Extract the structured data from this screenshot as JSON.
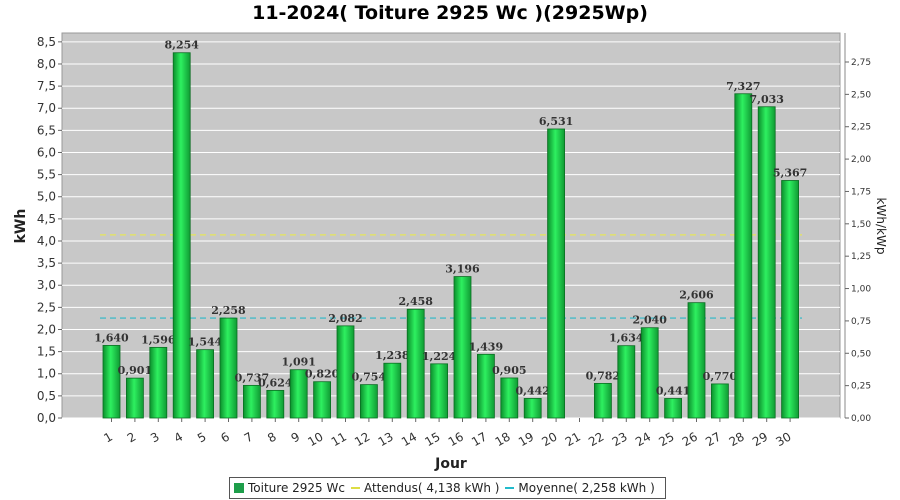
{
  "chart_data": {
    "type": "bar",
    "title": "11-2024( Toiture 2925 Wc )(2925Wp)",
    "xlabel": "Jour",
    "ylabel": "kWh",
    "y2label": "kWh/kWp",
    "ylim": [
      0,
      8.7
    ],
    "y2lim": [
      0,
      2.974
    ],
    "yticks": [
      "0,0",
      "0,5",
      "1,0",
      "1,5",
      "2,0",
      "2,5",
      "3,0",
      "3,5",
      "4,0",
      "4,5",
      "5,0",
      "5,5",
      "6,0",
      "6,5",
      "7,0",
      "7,5",
      "8,0",
      "8,5"
    ],
    "y2ticks": [
      "0,00",
      "0,25",
      "0,50",
      "0,75",
      "1,00",
      "1,25",
      "1,50",
      "1,75",
      "2,00",
      "2,25",
      "2,50",
      "2,75"
    ],
    "categories": [
      "1",
      "2",
      "3",
      "4",
      "5",
      "6",
      "7",
      "8",
      "9",
      "10",
      "11",
      "12",
      "13",
      "14",
      "15",
      "16",
      "17",
      "18",
      "19",
      "20",
      "21",
      "22",
      "23",
      "24",
      "25",
      "26",
      "27",
      "28",
      "29",
      "30"
    ],
    "series": [
      {
        "name": "Toiture 2925 Wc",
        "values": [
          1.64,
          0.901,
          1.596,
          8.254,
          1.544,
          2.258,
          0.737,
          0.624,
          1.091,
          0.82,
          2.082,
          0.754,
          1.238,
          2.458,
          1.224,
          3.196,
          1.439,
          0.905,
          0.442,
          6.531,
          0,
          0.782,
          1.634,
          2.04,
          0.441,
          2.606,
          0.77,
          7.327,
          7.033,
          5.367
        ],
        "labels": [
          "1,640",
          "0,901",
          "1,596",
          "8,254",
          "1,544",
          "2,258",
          "0,737",
          "0,624",
          "1,091",
          "0,820",
          "2,082",
          "0,754",
          "1,238",
          "2,458",
          "1,224",
          "3,196",
          "1,439",
          "0,905",
          "0,442",
          "6,531",
          "",
          "0,782",
          "1,634",
          "2,040",
          "0,441",
          "2,606",
          "0,770",
          "7,327",
          "7,033",
          "5,367"
        ]
      }
    ],
    "lines": [
      {
        "name": "Attendus( 4,138 kWh )",
        "value": 4.138,
        "color": "#e6e65a"
      },
      {
        "name": "Moyenne( 2,258 kWh )",
        "value": 2.258,
        "color": "#2ab8c8"
      }
    ],
    "colors": {
      "bar": "#22dd55",
      "bar_dark": "#0a8a2a",
      "plot_bg": "#c8c8c8",
      "grid": "#ffffff"
    },
    "legend_position": "bottom-center",
    "grid": true
  },
  "legend": {
    "bars": "Toiture 2925 Wc",
    "expected": "Attendus( 4,138 kWh )",
    "average": "Moyenne( 2,258 kWh )"
  }
}
